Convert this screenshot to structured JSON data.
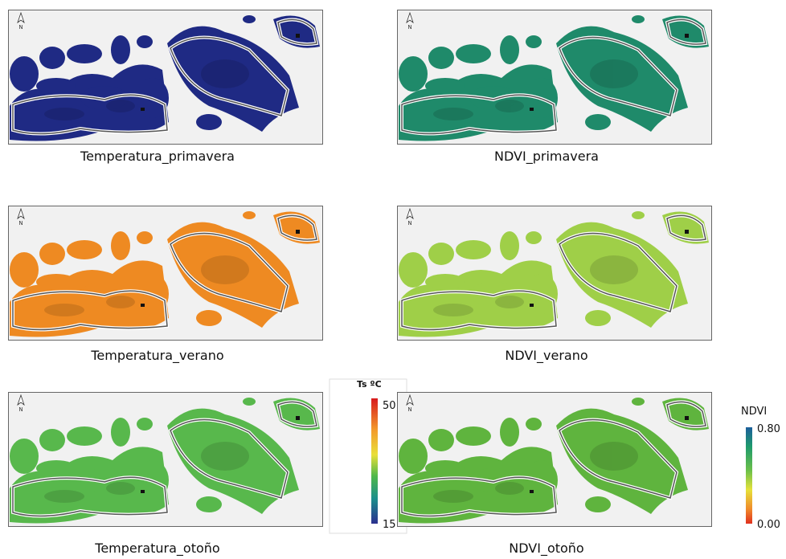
{
  "north_label": "N",
  "panels": [
    {
      "caption": "Temperatura_primavera"
    },
    {
      "caption": "NDVI_primavera"
    },
    {
      "caption": "Temperatura_verano"
    },
    {
      "caption": "NDVI_verano"
    },
    {
      "caption": "Temperatura_otoño"
    },
    {
      "caption": "NDVI_otoño"
    }
  ],
  "legends": [
    {
      "title": "Ts ºC",
      "max": 50,
      "min": 15
    },
    {
      "title": "NDVI",
      "max": {
        "value": 0.8,
        "label": "0.80"
      },
      "min": {
        "value": 0,
        "label": "0.00"
      }
    }
  ]
}
